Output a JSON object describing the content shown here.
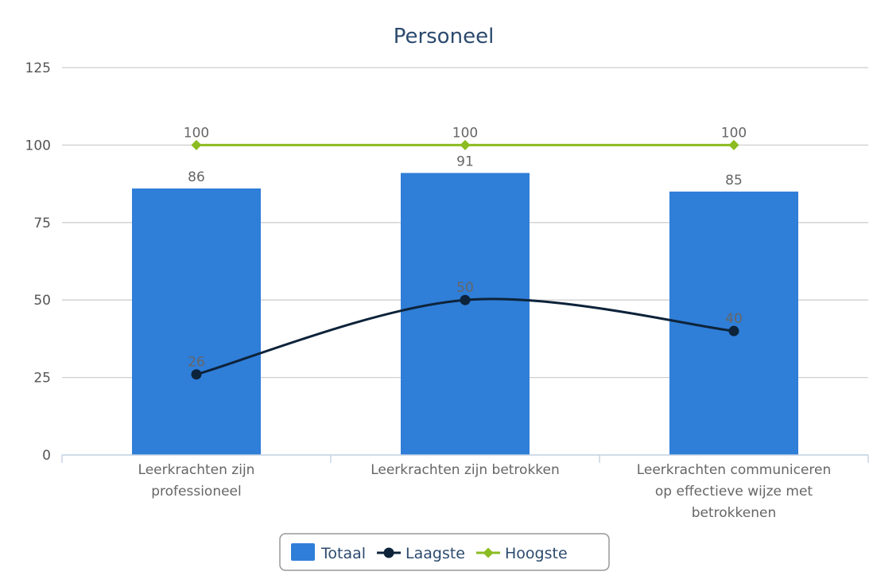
{
  "chart_data": {
    "type": "bar",
    "title": "Personeel",
    "categories": [
      "Leerkrachten zijn professioneel",
      "Leerkrachten zijn betrokken",
      "Leerkrachten communiceren op effectieve wijze met betrokkenen"
    ],
    "category_lines": [
      [
        "Leerkrachten zijn",
        "professioneel"
      ],
      [
        "Leerkrachten zijn betrokken"
      ],
      [
        "Leerkrachten communiceren",
        "op effectieve wijze met",
        "betrokkenen"
      ]
    ],
    "series": [
      {
        "name": "Totaal",
        "type": "bar",
        "values": [
          86,
          91,
          85
        ],
        "color": "#2f7ed8"
      },
      {
        "name": "Laagste",
        "type": "line",
        "smooth": true,
        "marker": "circle",
        "values": [
          26,
          50,
          40
        ],
        "color": "#0d233a"
      },
      {
        "name": "Hoogste",
        "type": "line",
        "marker": "diamond",
        "values": [
          100,
          100,
          100
        ],
        "color": "#8bbc21"
      }
    ],
    "yticks": [
      0,
      25,
      50,
      75,
      100,
      125
    ],
    "ylim": [
      0,
      125
    ],
    "grid": true,
    "legend": "bottom-center"
  }
}
